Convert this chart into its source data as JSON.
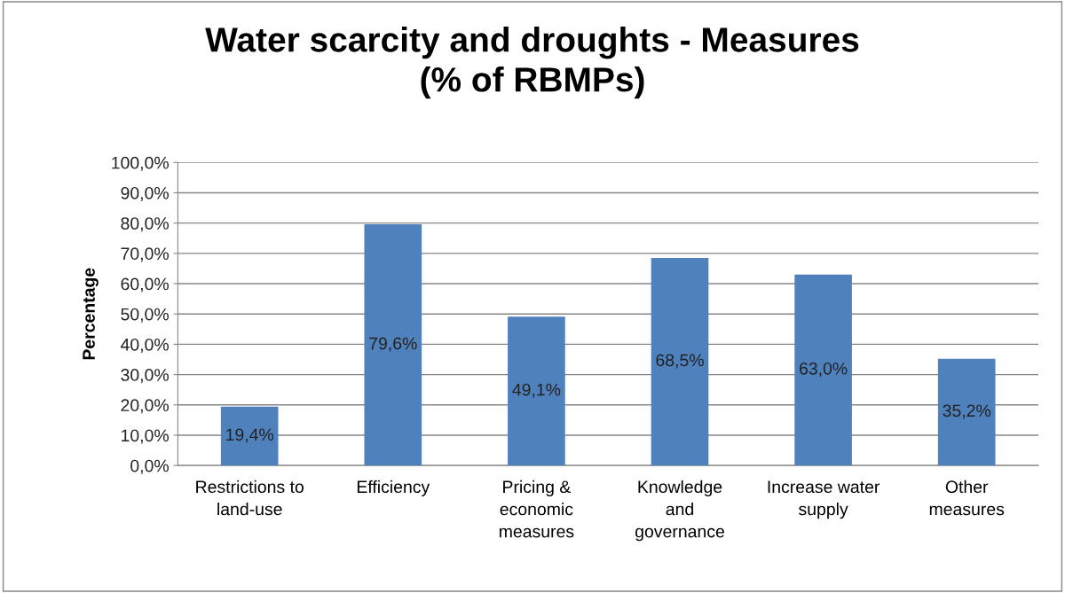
{
  "chart_data": {
    "type": "bar",
    "title": "Water scarcity and droughts - Measures\n(% of RBMPs)",
    "ylabel": "Percentage",
    "categories": [
      "Restrictions to\nland-use",
      "Efficiency",
      "Pricing &\neconomic\nmeasures",
      "Knowledge\nand\ngovernance",
      "Increase water\nsupply",
      "Other\nmeasures"
    ],
    "values": [
      19.4,
      79.6,
      49.1,
      68.5,
      63.0,
      35.2
    ],
    "value_labels": [
      "19,4%",
      "79,6%",
      "49,1%",
      "68,5%",
      "63,0%",
      "35,2%"
    ],
    "color": "#4f81bd",
    "ylim": [
      0,
      100
    ],
    "yticks": [
      {
        "value": 0,
        "label": "0,0%"
      },
      {
        "value": 10,
        "label": "10,0%"
      },
      {
        "value": 20,
        "label": "20,0%"
      },
      {
        "value": 30,
        "label": "30,0%"
      },
      {
        "value": 40,
        "label": "40,0%"
      },
      {
        "value": 50,
        "label": "50,0%"
      },
      {
        "value": 60,
        "label": "60,0%"
      },
      {
        "value": 70,
        "label": "70,0%"
      },
      {
        "value": 80,
        "label": "80,0%"
      },
      {
        "value": 90,
        "label": "90,0%"
      },
      {
        "value": 100,
        "label": "100,0%"
      }
    ],
    "grid": "y",
    "legend": false
  }
}
